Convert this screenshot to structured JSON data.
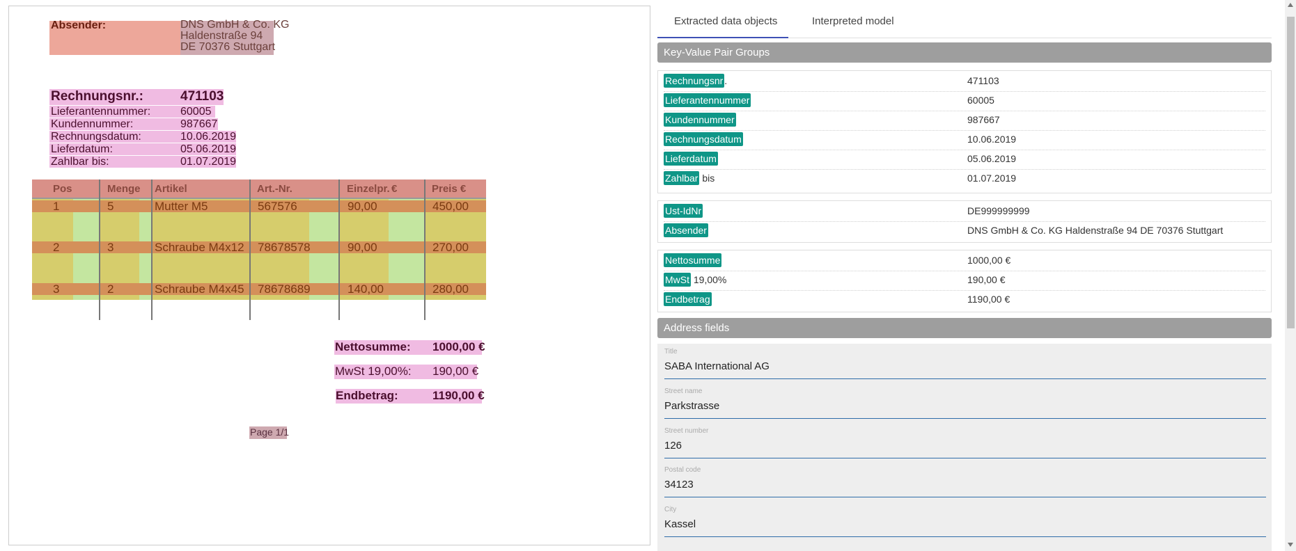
{
  "document": {
    "sender": {
      "label": "Absender:",
      "line1": "DNS GmbH & Co. KG",
      "line2": "Haldenstraße 94",
      "line3": "DE 70376 Stuttgart"
    },
    "invoice_fields": [
      {
        "label": "Rechnungsnr.:",
        "value": "471103"
      },
      {
        "label": "Lieferantennummer:",
        "value": "60005"
      },
      {
        "label": "Kundennummer:",
        "value": "987667"
      },
      {
        "label": "Rechnungsdatum:",
        "value": "10.06.2019"
      },
      {
        "label": "Lieferdatum:",
        "value": "05.06.2019"
      },
      {
        "label": "Zahlbar bis:",
        "value": "01.07.2019"
      }
    ],
    "table": {
      "headers": [
        "Pos",
        "Menge",
        "Artikel",
        "Art.-Nr.",
        "Einzelpr.",
        "€",
        "Preis €"
      ],
      "rows": [
        [
          "1",
          "5",
          "Mutter M5",
          "567576",
          "90,00",
          "450,00"
        ],
        [
          "2",
          "3",
          "Schraube M4x12",
          "78678578",
          "90,00",
          "270,00"
        ],
        [
          "3",
          "2",
          "Schraube M4x45",
          "78678689",
          "140,00",
          "280,00"
        ]
      ]
    },
    "totals": [
      {
        "label": "Nettosumme:",
        "value": "1000,00 €"
      },
      {
        "label": "MwSt 19,00%:",
        "value": "190,00 €"
      },
      {
        "label": "Endbetrag:",
        "value": "1190,00 €"
      }
    ],
    "page": "Page 1/1"
  },
  "panel": {
    "tabs": [
      {
        "label": "Extracted data objects",
        "active": true
      },
      {
        "label": "Interpreted model",
        "active": false
      }
    ],
    "kv_section_title": "Key-Value Pair Groups",
    "groups": [
      [
        {
          "key": "Rechnungsnr",
          "suffix": ".",
          "value": "471103"
        },
        {
          "key": "Lieferantennummer",
          "suffix": "",
          "value": "60005"
        },
        {
          "key": "Kundennummer",
          "suffix": "",
          "value": "987667"
        },
        {
          "key": "Rechnungsdatum",
          "suffix": "",
          "value": "10.06.2019"
        },
        {
          "key": "Lieferdatum",
          "suffix": "",
          "value": "05.06.2019"
        },
        {
          "key": "Zahlbar",
          "suffix": " bis",
          "value": "01.07.2019"
        }
      ],
      [
        {
          "key": "Ust-IdNr",
          "suffix": "",
          "value": "DE999999999"
        },
        {
          "key": "Absender",
          "suffix": "",
          "value": "DNS GmbH & Co. KG Haldenstraße 94 DE 70376 Stuttgart"
        }
      ],
      [
        {
          "key": "Nettosumme",
          "suffix": "",
          "value": "1000,00 €"
        },
        {
          "key": "MwSt",
          "suffix": " 19,00%",
          "value": "190,00 €"
        },
        {
          "key": "Endbetrag",
          "suffix": "",
          "value": "1190,00 €"
        }
      ]
    ],
    "address_section_title": "Address fields",
    "address_fields": [
      {
        "label": "Title",
        "value": "SABA International AG"
      },
      {
        "label": "Street name",
        "value": "Parkstrasse"
      },
      {
        "label": "Street number",
        "value": "126"
      },
      {
        "label": "Postal code",
        "value": "34123"
      },
      {
        "label": "City",
        "value": "Kassel"
      }
    ],
    "colors": {
      "chip": "#0f9687",
      "tab_underline": "#3f51b5",
      "field_underline": "#2e6ca8"
    }
  }
}
